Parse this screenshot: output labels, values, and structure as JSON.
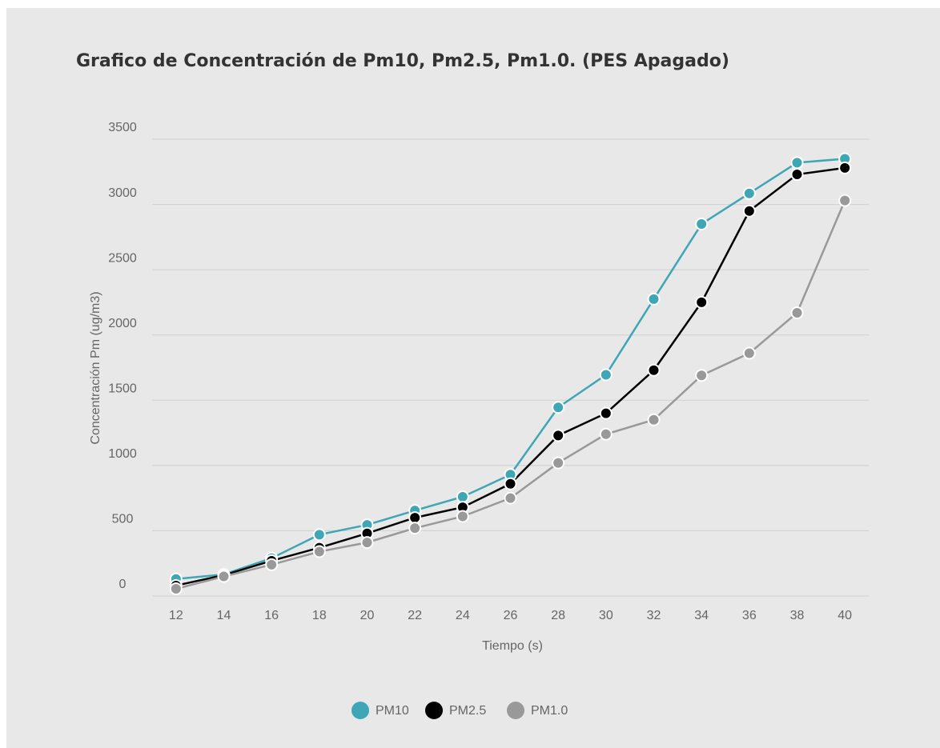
{
  "chart_data": {
    "type": "line",
    "title": "Grafico de Concentración de Pm10, Pm2.5, Pm1.0. (PES Apagado)",
    "x_label": "Tiempo (s)",
    "y_label": "Concentración Pm (ug/m3)",
    "x": [
      12,
      14,
      16,
      18,
      20,
      22,
      24,
      26,
      28,
      30,
      32,
      34,
      36,
      38,
      40
    ],
    "xlim": [
      11,
      41
    ],
    "ylim": [
      0,
      3500
    ],
    "yticks": [
      0,
      500,
      1000,
      1500,
      2000,
      2500,
      3000,
      3500
    ],
    "grid": true,
    "legend": "bottom",
    "series": [
      {
        "name": "PM10",
        "color": "#3fa6b5",
        "values": [
          130,
          165,
          290,
          470,
          545,
          655,
          760,
          930,
          1445,
          1695,
          2275,
          2850,
          3085,
          3320,
          3350
        ]
      },
      {
        "name": "PM2.5",
        "color": "#000000",
        "values": [
          80,
          160,
          270,
          370,
          480,
          600,
          680,
          860,
          1230,
          1400,
          1730,
          2250,
          2950,
          3230,
          3280
        ]
      },
      {
        "name": "PM1.0",
        "color": "#999999",
        "values": [
          55,
          150,
          240,
          340,
          410,
          520,
          610,
          750,
          1020,
          1240,
          1350,
          1690,
          1860,
          2170,
          3030
        ]
      }
    ]
  }
}
